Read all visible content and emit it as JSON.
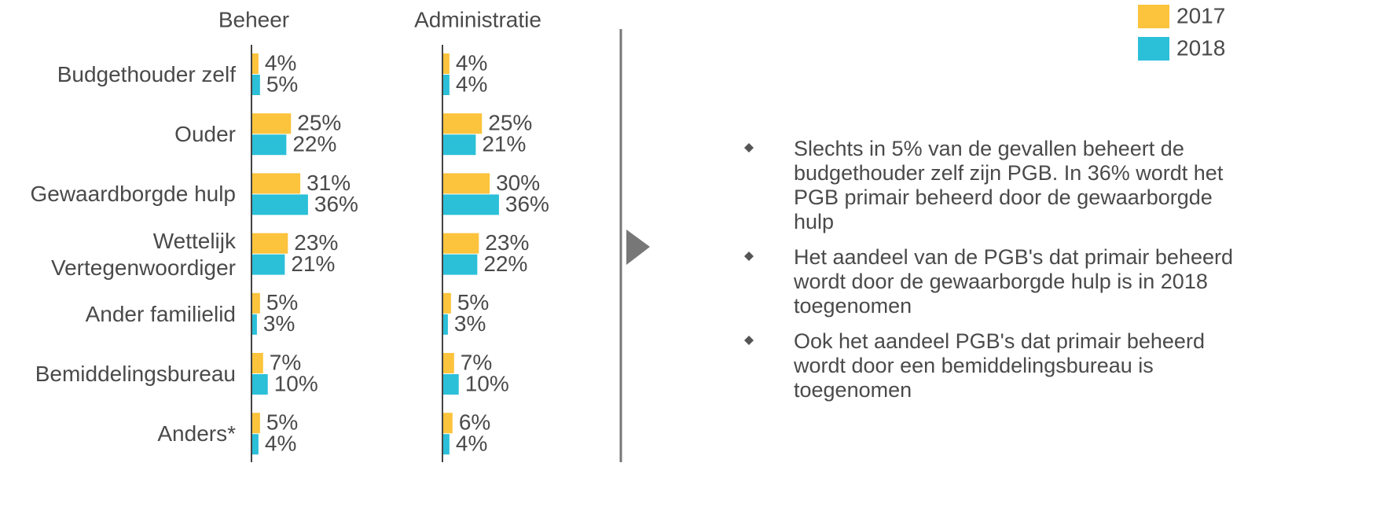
{
  "chart_data": [
    {
      "type": "bar",
      "orientation": "horizontal",
      "title": "Beheer",
      "categories": [
        "Budgethouder zelf",
        "Ouder",
        "Gewaardborgde hulp",
        "Wettelijk\nVertegenwoordiger",
        "Ander familielid",
        "Bemiddelingsbureau",
        "Anders*"
      ],
      "series": [
        {
          "name": "2017",
          "color": "#fcc33c",
          "values": [
            4,
            25,
            31,
            23,
            5,
            7,
            5
          ],
          "value_labels": [
            "4%",
            "25%",
            "31%",
            "23%",
            "5%",
            "7%",
            "5%"
          ]
        },
        {
          "name": "2018",
          "color": "#2bbfd8",
          "values": [
            5,
            22,
            36,
            21,
            3,
            10,
            4
          ],
          "value_labels": [
            "5%",
            "22%",
            "36%",
            "21%",
            "3%",
            "10%",
            "4%"
          ]
        }
      ]
    },
    {
      "type": "bar",
      "orientation": "horizontal",
      "title": "Administratie",
      "series": [
        {
          "name": "2017",
          "color": "#fcc33c",
          "values": [
            4,
            25,
            30,
            23,
            5,
            7,
            6
          ],
          "value_labels": [
            "4%",
            "25%",
            "30%",
            "23%",
            "5%",
            "7%",
            "6%"
          ]
        },
        {
          "name": "2018",
          "color": "#2bbfd8",
          "values": [
            4,
            21,
            36,
            22,
            3,
            10,
            4
          ],
          "value_labels": [
            "4%",
            "21%",
            "36%",
            "22%",
            "3%",
            "10%",
            "4%"
          ]
        }
      ]
    }
  ],
  "bullets": [
    "Slechts in 5% van de gevallen beheert de budgethouder zelf zijn PGB. In 36% wordt het PGB primair beheerd door de gewaarborgde hulp",
    "Het aandeel van de PGB's dat primair beheerd wordt door de gewaarborgde hulp is in 2018 toegenomen",
    "Ook het aandeel PGB's dat primair beheerd wordt door een bemiddelingsbureau is toegenomen"
  ]
}
